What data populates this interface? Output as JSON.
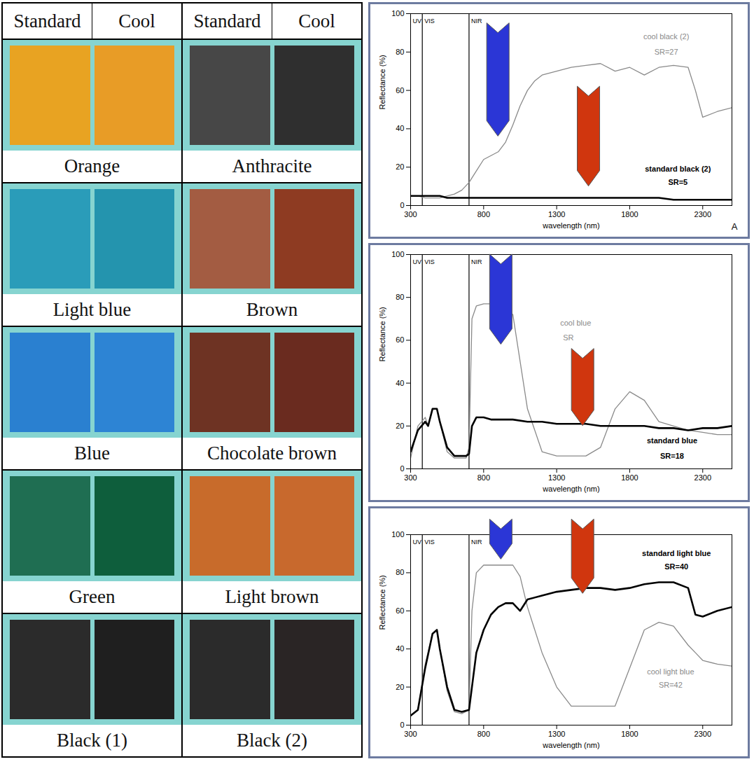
{
  "swatch_table": {
    "header": [
      "Standard",
      "Cool",
      "Standard",
      "Cool"
    ],
    "rows": [
      [
        {
          "label": "Orange",
          "colors": [
            "#e8a322",
            "#e89c26"
          ]
        },
        {
          "label": "Anthracite",
          "colors": [
            "#474747",
            "#2f2f2f"
          ]
        }
      ],
      [
        {
          "label": "Light blue",
          "colors": [
            "#2a9cb9",
            "#2494ae"
          ]
        },
        {
          "label": "Brown",
          "colors": [
            "#a35c42",
            "#8e3b22"
          ]
        }
      ],
      [
        {
          "label": "Blue",
          "colors": [
            "#2a80d0",
            "#2d84d4"
          ]
        },
        {
          "label": "Chocolate brown",
          "colors": [
            "#6e3323",
            "#6a2b1f"
          ]
        }
      ],
      [
        {
          "label": "Green",
          "colors": [
            "#1f6e52",
            "#0e5e3c"
          ]
        },
        {
          "label": "Light brown",
          "colors": [
            "#c86b2b",
            "#c8692d"
          ]
        }
      ],
      [
        {
          "label": "Black (1)",
          "colors": [
            "#2b2b2b",
            "#1f1f1f"
          ]
        },
        {
          "label": "Black (2)",
          "colors": [
            "#2b2b2b",
            "#2a2525"
          ]
        }
      ]
    ]
  },
  "chart_data": [
    {
      "type": "line",
      "panel_label": "A",
      "x_label": "wavelength (nm)",
      "y_label": "Reflectance (%)",
      "xlim": [
        300,
        2500
      ],
      "xticks": [
        300,
        800,
        1300,
        1800,
        2300
      ],
      "ylim": [
        0,
        100
      ],
      "yticks": [
        0,
        20,
        40,
        60,
        80,
        100
      ],
      "regions": [
        "UV",
        "VIS",
        "NIR"
      ],
      "region_boundaries": [
        380,
        700
      ],
      "x": [
        300,
        350,
        400,
        450,
        500,
        550,
        600,
        650,
        700,
        750,
        800,
        850,
        900,
        950,
        1000,
        1050,
        1100,
        1150,
        1200,
        1300,
        1400,
        1500,
        1600,
        1700,
        1800,
        1900,
        2000,
        2100,
        2200,
        2250,
        2300,
        2400,
        2500
      ],
      "series": [
        {
          "name": "cool black (2)",
          "color": "#8a8a8a",
          "line_style": "thin",
          "values": [
            5,
            5,
            4,
            4,
            4,
            5,
            6,
            8,
            12,
            18,
            24,
            26,
            28,
            33,
            42,
            52,
            60,
            65,
            68,
            70,
            72,
            73,
            74,
            70,
            72,
            68,
            72,
            73,
            72,
            60,
            46,
            49,
            51
          ]
        },
        {
          "name": "standard black (2)",
          "color": "#000000",
          "line_style": "thick",
          "values": [
            5,
            5,
            5,
            5,
            5,
            4,
            4,
            4,
            4,
            4,
            4,
            4,
            4,
            4,
            4,
            4,
            4,
            4,
            4,
            4,
            4,
            4,
            4,
            4,
            4,
            4,
            4,
            3,
            3,
            3,
            3,
            3,
            3
          ]
        }
      ],
      "annotations": [
        {
          "text": "cool black (2)",
          "x": 2050,
          "y": 88,
          "series": "cool black (2)"
        },
        {
          "text": "SR=27",
          "x": 2050,
          "y": 80,
          "series": "cool black (2)"
        },
        {
          "text": "standard black (2)",
          "x": 2130,
          "y": 19,
          "series": "standard black (2)"
        },
        {
          "text": "SR=5",
          "x": 2130,
          "y": 12,
          "series": "standard black (2)"
        }
      ]
    },
    {
      "type": "line",
      "x_label": "wavelength (nm)",
      "y_label": "Reflectance (%)",
      "xlim": [
        300,
        2500
      ],
      "xticks": [
        300,
        800,
        1300,
        1800,
        2300
      ],
      "ylim": [
        0,
        100
      ],
      "yticks": [
        0,
        20,
        40,
        60,
        80,
        100
      ],
      "regions": [
        "UV",
        "VIS",
        "NIR"
      ],
      "region_boundaries": [
        380,
        700
      ],
      "x": [
        300,
        350,
        400,
        420,
        450,
        480,
        500,
        550,
        600,
        650,
        680,
        700,
        720,
        750,
        800,
        850,
        900,
        1000,
        1100,
        1200,
        1300,
        1400,
        1500,
        1600,
        1700,
        1800,
        1900,
        2000,
        2100,
        2200,
        2300,
        2400,
        2500
      ],
      "series": [
        {
          "name": "cool blue",
          "color": "#8a8a8a",
          "line_style": "thin",
          "values": [
            5,
            20,
            24,
            20,
            28,
            28,
            22,
            8,
            5,
            5,
            5,
            10,
            70,
            76,
            77,
            77,
            76,
            72,
            28,
            8,
            6,
            6,
            6,
            10,
            28,
            36,
            32,
            22,
            20,
            18,
            17,
            16,
            16
          ]
        },
        {
          "name": "standard blue",
          "color": "#000000",
          "line_style": "thick",
          "values": [
            8,
            18,
            22,
            20,
            28,
            28,
            22,
            10,
            6,
            6,
            6,
            7,
            20,
            24,
            24,
            23,
            23,
            23,
            22,
            22,
            21,
            21,
            21,
            20,
            20,
            20,
            20,
            19,
            19,
            18,
            19,
            19,
            20
          ]
        }
      ],
      "annotations": [
        {
          "text": "cool blue",
          "x": 1430,
          "y": 68,
          "series": "cool blue"
        },
        {
          "text": "SR",
          "x": 1380,
          "y": 61,
          "series": "cool blue"
        },
        {
          "text": "standard blue",
          "x": 2090,
          "y": 13,
          "series": "standard blue"
        },
        {
          "text": "SR=18",
          "x": 2090,
          "y": 6,
          "series": "standard blue"
        }
      ]
    },
    {
      "type": "line",
      "x_label": "wavelength (nm)",
      "y_label": "Reflectance (%)",
      "xlim": [
        300,
        2500
      ],
      "xticks": [
        300,
        800,
        1300,
        1800,
        2300
      ],
      "ylim": [
        0,
        100
      ],
      "yticks": [
        0,
        20,
        40,
        60,
        80,
        100
      ],
      "regions": [
        "UV",
        "VIS",
        "NIR"
      ],
      "region_boundaries": [
        380,
        700
      ],
      "x": [
        300,
        350,
        400,
        450,
        480,
        500,
        550,
        600,
        650,
        700,
        720,
        750,
        800,
        850,
        900,
        950,
        1000,
        1050,
        1100,
        1200,
        1300,
        1400,
        1500,
        1600,
        1700,
        1800,
        1900,
        2000,
        2100,
        2200,
        2250,
        2300,
        2400,
        2500
      ],
      "series": [
        {
          "name": "cool light blue",
          "color": "#8a8a8a",
          "line_style": "thin",
          "values": [
            5,
            8,
            32,
            48,
            50,
            40,
            18,
            7,
            6,
            8,
            60,
            80,
            84,
            84,
            84,
            84,
            84,
            78,
            62,
            38,
            20,
            10,
            10,
            10,
            10,
            30,
            50,
            54,
            52,
            42,
            38,
            34,
            32,
            31
          ]
        },
        {
          "name": "standard light blue",
          "color": "#000000",
          "line_style": "thick",
          "values": [
            5,
            8,
            30,
            48,
            50,
            40,
            20,
            8,
            7,
            8,
            20,
            38,
            50,
            58,
            62,
            64,
            64,
            60,
            66,
            68,
            70,
            71,
            72,
            72,
            71,
            72,
            74,
            75,
            75,
            72,
            58,
            57,
            60,
            62
          ]
        }
      ],
      "annotations": [
        {
          "text": "standard light blue",
          "x": 2120,
          "y": 90,
          "series": "standard light blue"
        },
        {
          "text": "SR=40",
          "x": 2120,
          "y": 83,
          "series": "standard light blue"
        },
        {
          "text": "cool light blue",
          "x": 2080,
          "y": 28,
          "series": "cool light blue"
        },
        {
          "text": "SR=42",
          "x": 2080,
          "y": 21,
          "series": "cool light blue"
        }
      ]
    }
  ]
}
